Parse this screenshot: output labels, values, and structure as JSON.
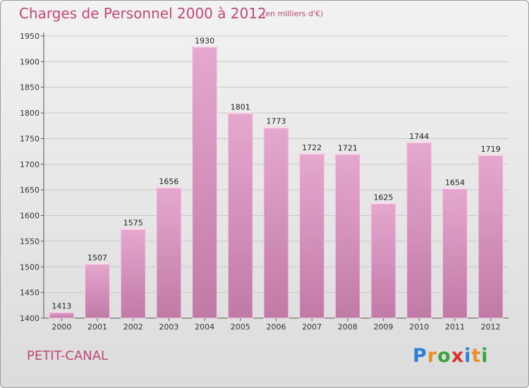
{
  "header": {
    "title": "Charges de Personnel 2000 à 2012",
    "subtitle": "(en milliers d'€)"
  },
  "footer": {
    "city": "PETIT-CANAL",
    "logo_letters": [
      "P",
      "r",
      "o",
      "x",
      "i",
      "t",
      "i"
    ],
    "logo_colors": [
      "#2b7fd4",
      "#e8902a",
      "#3ca23c",
      "#d8342c",
      "#2b7fd4",
      "#e8902a",
      "#3ca23c"
    ]
  },
  "colors": {
    "bar_light": "#e6a8cf",
    "bar_dark": "#c07aa6",
    "title": "#c04878",
    "grid": "#c8c8c8"
  },
  "chart_data": {
    "type": "bar",
    "categories": [
      "2000",
      "2001",
      "2002",
      "2003",
      "2004",
      "2005",
      "2006",
      "2007",
      "2008",
      "2009",
      "2010",
      "2011",
      "2012"
    ],
    "values": [
      1413,
      1507,
      1575,
      1656,
      1930,
      1801,
      1773,
      1722,
      1721,
      1625,
      1744,
      1654,
      1719
    ],
    "title": "Charges de Personnel 2000 à 2012",
    "xlabel": "",
    "ylabel": "",
    "ylim": [
      1400,
      1950
    ],
    "yticks": [
      1400,
      1450,
      1500,
      1550,
      1600,
      1650,
      1700,
      1750,
      1800,
      1850,
      1900,
      1950
    ],
    "grid": true,
    "legend": "none"
  }
}
